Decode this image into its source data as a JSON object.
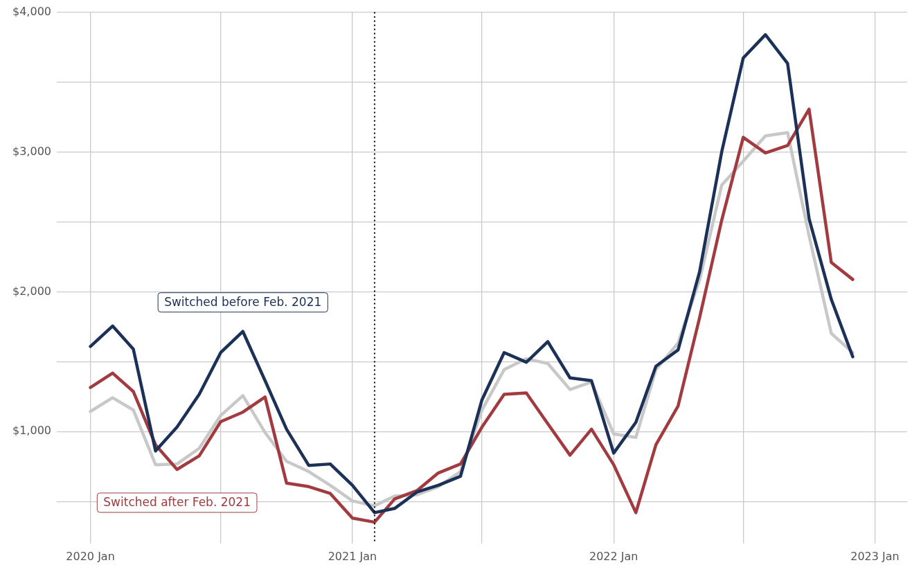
{
  "chart_data": {
    "type": "line",
    "x": [
      "2020-01",
      "2020-02",
      "2020-03",
      "2020-04",
      "2020-05",
      "2020-06",
      "2020-07",
      "2020-08",
      "2020-09",
      "2020-10",
      "2020-11",
      "2020-12",
      "2021-01",
      "2021-02",
      "2021-03",
      "2021-04",
      "2021-05",
      "2021-06",
      "2021-07",
      "2021-08",
      "2021-09",
      "2021-10",
      "2021-11",
      "2021-12",
      "2022-01",
      "2022-02",
      "2022-03",
      "2022-04",
      "2022-05",
      "2022-06",
      "2022-07",
      "2022-08",
      "2022-09",
      "2022-10",
      "2022-11",
      "2022-12"
    ],
    "series": [
      {
        "name": "Switched before Feb. 2021",
        "color": "#1b3157",
        "values": [
          1609,
          1755,
          1589,
          861,
          1032,
          1266,
          1565,
          1716,
          1364,
          1017,
          758,
          768,
          616,
          420,
          450,
          567,
          616,
          680,
          1227,
          1565,
          1496,
          1643,
          1384,
          1364,
          846,
          1066,
          1467,
          1584,
          2142,
          3002,
          3672,
          3839,
          3633,
          2523,
          1946,
          1535
        ]
      },
      {
        "name": "Switched after Feb. 2021",
        "color": "#a23b3f",
        "values": [
          1315,
          1418,
          1286,
          905,
          729,
          826,
          1071,
          1139,
          1247,
          631,
          606,
          557,
          381,
          352,
          518,
          577,
          704,
          768,
          1032,
          1266,
          1276,
          1056,
          831,
          1017,
          763,
          420,
          905,
          1183,
          1814,
          2513,
          3105,
          2993,
          3046,
          3306,
          2210,
          2088
        ]
      },
      {
        "color": "#c8c8c8",
        "values": [
          1144,
          1242,
          1154,
          763,
          768,
          880,
          1115,
          1257,
          993,
          787,
          714,
          616,
          504,
          469,
          538,
          548,
          606,
          714,
          1154,
          1443,
          1521,
          1487,
          1301,
          1355,
          983,
          958,
          1443,
          1633,
          2083,
          2763,
          2934,
          3115,
          3139,
          2401,
          1702,
          1565
        ]
      }
    ],
    "xlim": [
      "2019-11-15",
      "2023-02-15"
    ],
    "xticks": [
      {
        "value": "2020-01",
        "label": "2020 Jan"
      },
      {
        "value": "2020-07",
        "label": null
      },
      {
        "value": "2021-01",
        "label": "2021 Jan"
      },
      {
        "value": "2021-07",
        "label": null
      },
      {
        "value": "2022-01",
        "label": "2022 Jan"
      },
      {
        "value": "2022-07",
        "label": null
      },
      {
        "value": "2023-01",
        "label": "2023 Jan"
      }
    ],
    "ylim": [
      200,
      4000
    ],
    "yticks": [
      {
        "value": 500,
        "label": null
      },
      {
        "value": 1000,
        "label": "$1,000"
      },
      {
        "value": 1500,
        "label": null
      },
      {
        "value": 2000,
        "label": "$2,000"
      },
      {
        "value": 2500,
        "label": null
      },
      {
        "value": 3000,
        "label": "$3,000"
      },
      {
        "value": 3500,
        "label": null
      },
      {
        "value": 4000,
        "label": "$4,000"
      }
    ],
    "ref_lines": [
      {
        "axis": "x",
        "value": "2021-02",
        "color": "#000000",
        "line_style": "dotted"
      }
    ],
    "grid": true,
    "legend": false,
    "marker": "none",
    "line_style": "solid"
  }
}
